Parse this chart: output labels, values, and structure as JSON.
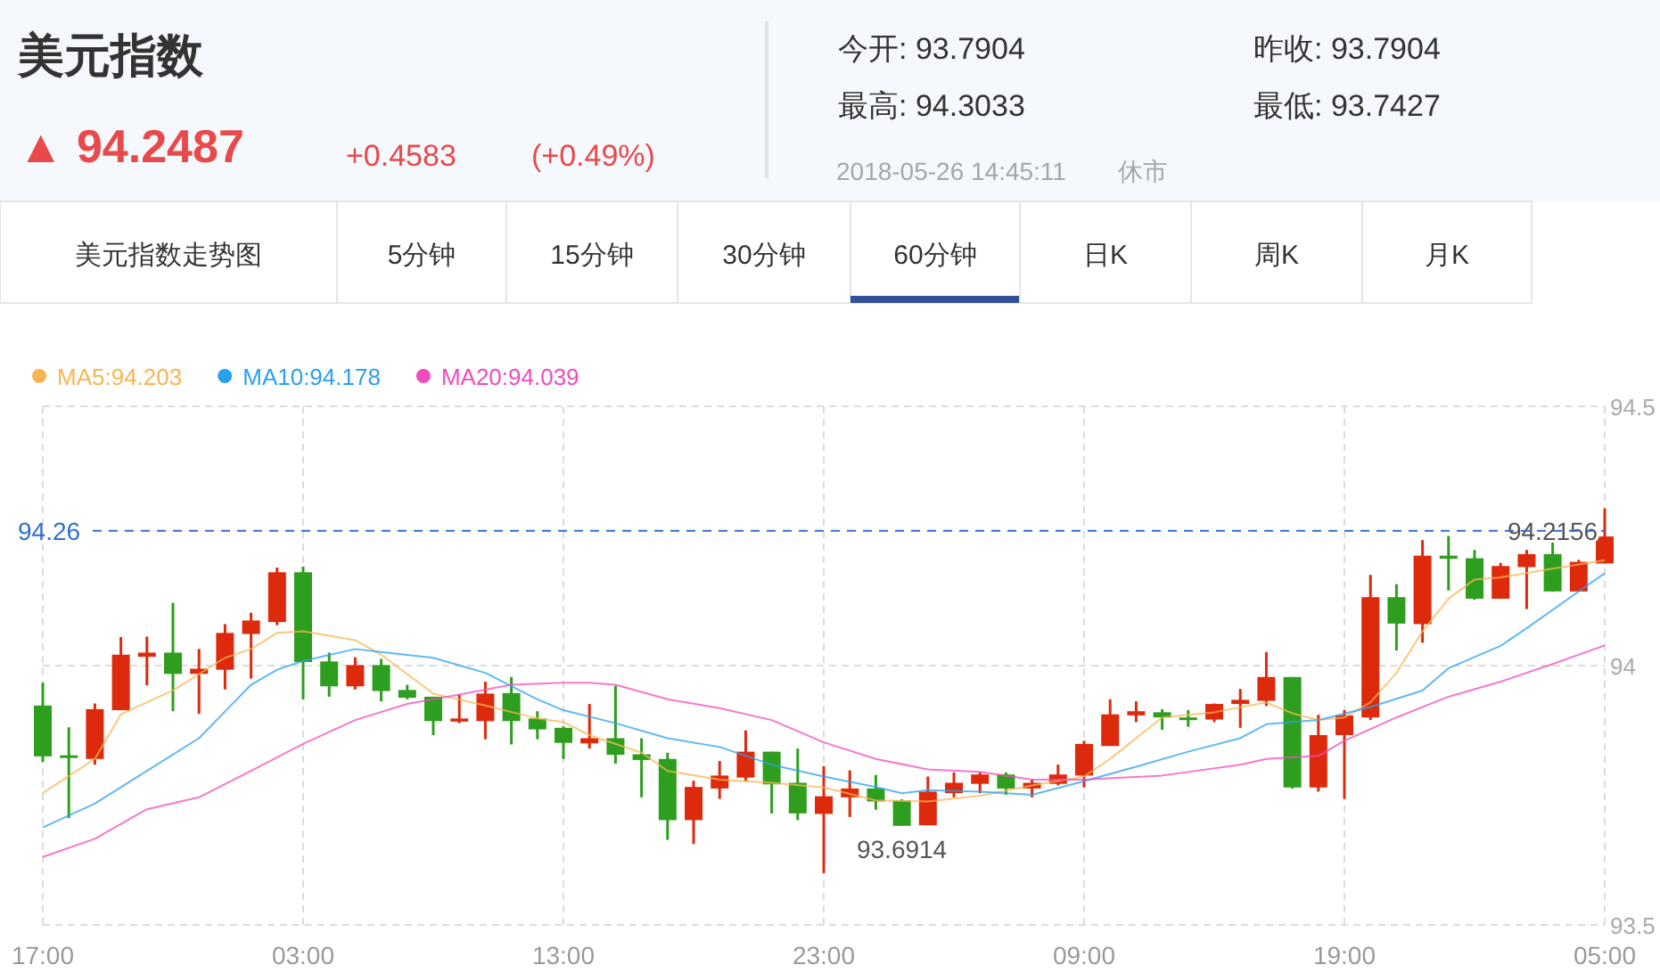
{
  "chart_data": {
    "type": "candlestick",
    "title": "美元指数",
    "annotations": [
      "▲ 94.2487",
      "+0.4583",
      "(+0.49%)",
      "今开: 93.7904",
      "昨收: 93.7904",
      "最高: 94.3033",
      "最低: 93.7427",
      "2018-05-26 14:45:11",
      "休市",
      "美元指数走势图",
      "5分钟",
      "15分钟",
      "30分钟",
      "60分钟",
      "日K",
      "周K",
      "月K",
      {
        "text": "93.6914",
        "x": "2018-05-25T02:00",
        "y": 93.6914
      },
      {
        "text": "94.2156",
        "x": "2018-05-26T03:00",
        "y": 94.2156
      }
    ],
    "x": [
      "2018-05-23T17:00",
      "2018-05-23T18:00",
      "2018-05-23T19:00",
      "2018-05-23T20:00",
      "2018-05-23T21:00",
      "2018-05-23T22:00",
      "2018-05-23T23:00",
      "2018-05-24T00:00",
      "2018-05-24T01:00",
      "2018-05-24T02:00",
      "2018-05-24T03:00",
      "2018-05-24T04:00",
      "2018-05-24T05:00",
      "2018-05-24T06:00",
      "2018-05-24T07:00",
      "2018-05-24T08:00",
      "2018-05-24T09:00",
      "2018-05-24T10:00",
      "2018-05-24T11:00",
      "2018-05-24T12:00",
      "2018-05-24T13:00",
      "2018-05-24T14:00",
      "2018-05-24T15:00",
      "2018-05-24T16:00",
      "2018-05-24T17:00",
      "2018-05-24T18:00",
      "2018-05-24T19:00",
      "2018-05-24T20:00",
      "2018-05-24T21:00",
      "2018-05-24T22:00",
      "2018-05-24T23:00",
      "2018-05-25T00:00",
      "2018-05-25T01:00",
      "2018-05-25T02:00",
      "2018-05-25T03:00",
      "2018-05-25T04:00",
      "2018-05-25T05:00",
      "2018-05-25T06:00",
      "2018-05-25T07:00",
      "2018-05-25T08:00",
      "2018-05-25T09:00",
      "2018-05-25T10:00",
      "2018-05-25T11:00",
      "2018-05-25T12:00",
      "2018-05-25T13:00",
      "2018-05-25T14:00",
      "2018-05-25T15:00",
      "2018-05-25T16:00",
      "2018-05-25T17:00",
      "2018-05-25T18:00",
      "2018-05-25T19:00",
      "2018-05-25T20:00",
      "2018-05-25T21:00",
      "2018-05-25T22:00",
      "2018-05-25T23:00",
      "2018-05-26T00:00",
      "2018-05-26T01:00",
      "2018-05-26T02:00",
      "2018-05-26T03:00",
      "2018-05-26T04:00",
      "2018-05-26T05:00"
    ],
    "ohlc": [
      [
        93.923,
        93.967,
        93.814,
        93.825
      ],
      [
        93.827,
        93.881,
        93.706,
        93.822
      ],
      [
        93.82,
        93.927,
        93.809,
        93.916
      ],
      [
        93.914,
        94.055,
        93.914,
        94.021
      ],
      [
        94.017,
        94.056,
        93.962,
        94.025
      ],
      [
        94.025,
        94.121,
        93.912,
        93.984
      ],
      [
        93.984,
        94.032,
        93.907,
        93.994
      ],
      [
        93.992,
        94.08,
        93.954,
        94.063
      ],
      [
        94.061,
        94.102,
        93.975,
        94.087
      ],
      [
        94.084,
        94.189,
        94.078,
        94.18
      ],
      [
        94.18,
        94.191,
        93.935,
        94.007
      ],
      [
        94.008,
        94.025,
        93.94,
        93.96
      ],
      [
        93.96,
        94.016,
        93.954,
        94.001
      ],
      [
        94.001,
        94.013,
        93.931,
        93.951
      ],
      [
        93.953,
        93.963,
        93.935,
        93.938
      ],
      [
        93.94,
        93.94,
        93.866,
        93.893
      ],
      [
        93.892,
        93.944,
        93.889,
        93.898
      ],
      [
        93.893,
        93.969,
        93.858,
        93.946
      ],
      [
        93.947,
        93.978,
        93.848,
        93.893
      ],
      [
        93.898,
        93.912,
        93.858,
        93.877
      ],
      [
        93.88,
        93.883,
        93.82,
        93.851
      ],
      [
        93.85,
        93.926,
        93.84,
        93.86
      ],
      [
        93.86,
        93.961,
        93.811,
        93.828
      ],
      [
        93.829,
        93.86,
        93.746,
        93.818
      ],
      [
        93.82,
        93.832,
        93.664,
        93.702
      ],
      [
        93.702,
        93.778,
        93.656,
        93.766
      ],
      [
        93.763,
        93.816,
        93.743,
        93.788
      ],
      [
        93.784,
        93.875,
        93.777,
        93.834
      ],
      [
        93.834,
        93.834,
        93.715,
        93.771
      ],
      [
        93.774,
        93.84,
        93.702,
        93.715
      ],
      [
        93.714,
        93.806,
        93.6,
        93.748
      ],
      [
        93.746,
        93.798,
        93.708,
        93.763
      ],
      [
        93.763,
        93.789,
        93.722,
        93.738
      ],
      [
        93.74,
        93.742,
        93.691,
        93.691
      ],
      [
        93.692,
        93.786,
        93.692,
        93.757
      ],
      [
        93.754,
        93.794,
        93.746,
        93.774
      ],
      [
        93.772,
        93.794,
        93.754,
        93.79
      ],
      [
        93.79,
        93.794,
        93.751,
        93.763
      ],
      [
        93.763,
        93.78,
        93.746,
        93.774
      ],
      [
        93.772,
        93.809,
        93.769,
        93.79
      ],
      [
        93.788,
        93.855,
        93.765,
        93.849
      ],
      [
        93.845,
        93.935,
        93.845,
        93.906
      ],
      [
        93.904,
        93.931,
        93.891,
        93.912
      ],
      [
        93.91,
        93.916,
        93.876,
        93.9
      ],
      [
        93.9,
        93.914,
        93.882,
        93.896
      ],
      [
        93.896,
        93.927,
        93.891,
        93.926
      ],
      [
        93.926,
        93.955,
        93.88,
        93.934
      ],
      [
        93.932,
        94.026,
        93.922,
        93.978
      ],
      [
        93.978,
        93.978,
        93.763,
        93.765
      ],
      [
        93.765,
        93.905,
        93.757,
        93.866
      ],
      [
        93.866,
        93.914,
        93.743,
        93.904
      ],
      [
        93.9,
        94.175,
        93.895,
        94.132
      ],
      [
        94.132,
        94.157,
        94.029,
        94.081
      ],
      [
        94.08,
        94.242,
        94.044,
        94.212
      ],
      [
        94.212,
        94.25,
        94.145,
        94.206
      ],
      [
        94.207,
        94.223,
        94.127,
        94.129
      ],
      [
        94.129,
        94.198,
        94.129,
        94.192
      ],
      [
        94.19,
        94.223,
        94.109,
        94.215
      ],
      [
        94.215,
        94.244,
        94.143,
        94.143
      ],
      [
        94.143,
        94.204,
        94.143,
        94.2
      ],
      [
        94.197,
        94.303,
        94.197,
        94.249
      ]
    ],
    "colors": [
      "#2e9e1e",
      "#2e9e1e",
      "#dd2a0c",
      "#dd2a0c",
      "#dd2a0c",
      "#2e9e1e",
      "#dd2a0c",
      "#dd2a0c",
      "#dd2a0c",
      "#dd2a0c",
      "#2e9e1e",
      "#2e9e1e",
      "#dd2a0c",
      "#2e9e1e",
      "#2e9e1e",
      "#2e9e1e",
      "#dd2a0c",
      "#dd2a0c",
      "#2e9e1e",
      "#2e9e1e",
      "#2e9e1e",
      "#dd2a0c",
      "#2e9e1e",
      "#2e9e1e",
      "#2e9e1e",
      "#dd2a0c",
      "#dd2a0c",
      "#dd2a0c",
      "#2e9e1e",
      "#2e9e1e",
      "#dd2a0c",
      "#dd2a0c",
      "#2e9e1e",
      "#2e9e1e",
      "#dd2a0c",
      "#dd2a0c",
      "#dd2a0c",
      "#2e9e1e",
      "#dd2a0c",
      "#dd2a0c",
      "#dd2a0c",
      "#dd2a0c",
      "#dd2a0c",
      "#2e9e1e",
      "#2e9e1e",
      "#dd2a0c",
      "#dd2a0c",
      "#dd2a0c",
      "#2e9e1e",
      "#dd2a0c",
      "#dd2a0c",
      "#dd2a0c",
      "#2e9e1e",
      "#dd2a0c",
      "#2e9e1e",
      "#2e9e1e",
      "#dd2a0c",
      "#dd2a0c",
      "#2e9e1e",
      "#dd2a0c",
      "#dd2a0c"
    ],
    "series": [
      {
        "name": "MA5:94.203",
        "color": "#f9b552",
        "type": "line",
        "x": [
          "2018-05-23T17:00",
          "2018-05-23T19:00",
          "2018-05-23T20:00",
          "2018-05-23T22:00",
          "2018-05-24T00:00",
          "2018-05-24T01:00",
          "2018-05-24T02:00",
          "2018-05-24T03:00",
          "2018-05-24T05:00",
          "2018-05-24T06:00",
          "2018-05-24T08:00",
          "2018-05-24T10:00",
          "2018-05-24T12:00",
          "2018-05-24T13:00",
          "2018-05-24T14:00",
          "2018-05-24T16:00",
          "2018-05-24T17:00",
          "2018-05-24T19:00",
          "2018-05-24T21:00",
          "2018-05-24T23:00",
          "2018-05-25T01:00",
          "2018-05-25T03:00",
          "2018-05-25T05:00",
          "2018-05-25T07:00",
          "2018-05-25T09:00",
          "2018-05-25T10:00",
          "2018-05-25T12:00",
          "2018-05-25T14:00",
          "2018-05-25T16:00",
          "2018-05-25T17:00",
          "2018-05-25T18:00",
          "2018-05-25T19:00",
          "2018-05-25T20:00",
          "2018-05-25T21:00",
          "2018-05-25T22:00",
          "2018-05-25T23:00",
          "2018-05-26T00:00",
          "2018-05-26T01:00",
          "2018-05-26T03:00",
          "2018-05-26T05:00"
        ],
        "values": [
          93.754,
          93.82,
          93.906,
          93.952,
          94.015,
          94.032,
          94.063,
          94.066,
          94.049,
          94.021,
          93.946,
          93.923,
          93.898,
          93.891,
          93.866,
          93.832,
          93.797,
          93.78,
          93.774,
          93.765,
          93.74,
          93.738,
          93.749,
          93.769,
          93.786,
          93.82,
          93.9,
          93.91,
          93.929,
          93.908,
          93.895,
          93.9,
          93.929,
          93.986,
          94.066,
          94.129,
          94.166,
          94.17,
          94.187,
          94.203
        ]
      },
      {
        "name": "MA10:94.178",
        "color": "#2ba0ef",
        "type": "line",
        "x": [
          "2018-05-23T17:00",
          "2018-05-23T19:00",
          "2018-05-23T21:00",
          "2018-05-23T23:00",
          "2018-05-24T01:00",
          "2018-05-24T02:00",
          "2018-05-24T03:00",
          "2018-05-24T05:00",
          "2018-05-24T06:00",
          "2018-05-24T08:00",
          "2018-05-24T10:00",
          "2018-05-24T12:00",
          "2018-05-24T13:00",
          "2018-05-24T15:00",
          "2018-05-24T17:00",
          "2018-05-24T19:00",
          "2018-05-24T21:00",
          "2018-05-24T23:00",
          "2018-05-25T01:00",
          "2018-05-25T02:00",
          "2018-05-25T03:00",
          "2018-05-25T05:00",
          "2018-05-25T07:00",
          "2018-05-25T09:00",
          "2018-05-25T11:00",
          "2018-05-25T13:00",
          "2018-05-25T15:00",
          "2018-05-25T16:00",
          "2018-05-25T18:00",
          "2018-05-25T20:00",
          "2018-05-25T22:00",
          "2018-05-25T23:00",
          "2018-05-26T01:00",
          "2018-05-26T02:00",
          "2018-05-26T04:00",
          "2018-05-26T05:00"
        ],
        "values": [
          93.688,
          93.734,
          93.797,
          93.86,
          93.963,
          93.992,
          94.009,
          94.032,
          94.026,
          94.015,
          93.986,
          93.935,
          93.914,
          93.889,
          93.86,
          93.843,
          93.809,
          93.786,
          93.766,
          93.754,
          93.76,
          93.757,
          93.751,
          93.777,
          93.805,
          93.834,
          93.86,
          93.887,
          93.895,
          93.92,
          93.952,
          93.995,
          94.038,
          94.072,
          94.143,
          94.178
        ]
      },
      {
        "name": "MA20:94.039",
        "color": "#f04cbd",
        "type": "line",
        "x": [
          "2018-05-23T17:00",
          "2018-05-23T19:00",
          "2018-05-23T21:00",
          "2018-05-23T23:00",
          "2018-05-24T01:00",
          "2018-05-24T03:00",
          "2018-05-24T05:00",
          "2018-05-24T07:00",
          "2018-05-24T09:00",
          "2018-05-24T11:00",
          "2018-05-24T13:00",
          "2018-05-24T14:00",
          "2018-05-24T15:00",
          "2018-05-24T17:00",
          "2018-05-24T19:00",
          "2018-05-24T21:00",
          "2018-05-24T23:00",
          "2018-05-25T01:00",
          "2018-05-25T03:00",
          "2018-05-25T05:00",
          "2018-05-25T07:00",
          "2018-05-25T09:00",
          "2018-05-25T12:00",
          "2018-05-25T15:00",
          "2018-05-25T16:00",
          "2018-05-25T18:00",
          "2018-05-25T19:00",
          "2018-05-25T21:00",
          "2018-05-25T23:00",
          "2018-05-26T01:00",
          "2018-05-26T03:00",
          "2018-05-26T05:00"
        ],
        "values": [
          93.631,
          93.666,
          93.723,
          93.746,
          93.797,
          93.849,
          93.895,
          93.926,
          93.944,
          93.963,
          93.967,
          93.967,
          93.963,
          93.935,
          93.918,
          93.895,
          93.852,
          93.82,
          93.8,
          93.795,
          93.78,
          93.78,
          93.788,
          93.809,
          93.82,
          93.826,
          93.855,
          93.9,
          93.94,
          93.969,
          94.003,
          94.039
        ]
      }
    ],
    "xlim": [
      "2018-05-23T17:00",
      "2018-05-26T05:00"
    ],
    "ylim": [
      93.5,
      94.5
    ],
    "xticks": [
      {
        "value": "2018-05-23T17:00",
        "label": "17:00"
      },
      {
        "value": "2018-05-24T03:00",
        "label": "03:00"
      },
      {
        "value": "2018-05-24T13:00",
        "label": "13:00"
      },
      {
        "value": "2018-05-24T23:00",
        "label": "23:00"
      },
      {
        "value": "2018-05-25T09:00",
        "label": "09:00"
      },
      {
        "value": "2018-05-25T19:00",
        "label": "19:00"
      },
      {
        "value": "2018-05-26T05:00",
        "label": "05:00"
      }
    ],
    "yticks": [
      93.5,
      94,
      94.5
    ],
    "ref_lines": [
      {
        "axis": "y",
        "value": 94.26,
        "label": "94.26",
        "color": "#2f6fd2",
        "line_style": "dashed"
      }
    ],
    "grid": true,
    "legend": "top left"
  }
}
